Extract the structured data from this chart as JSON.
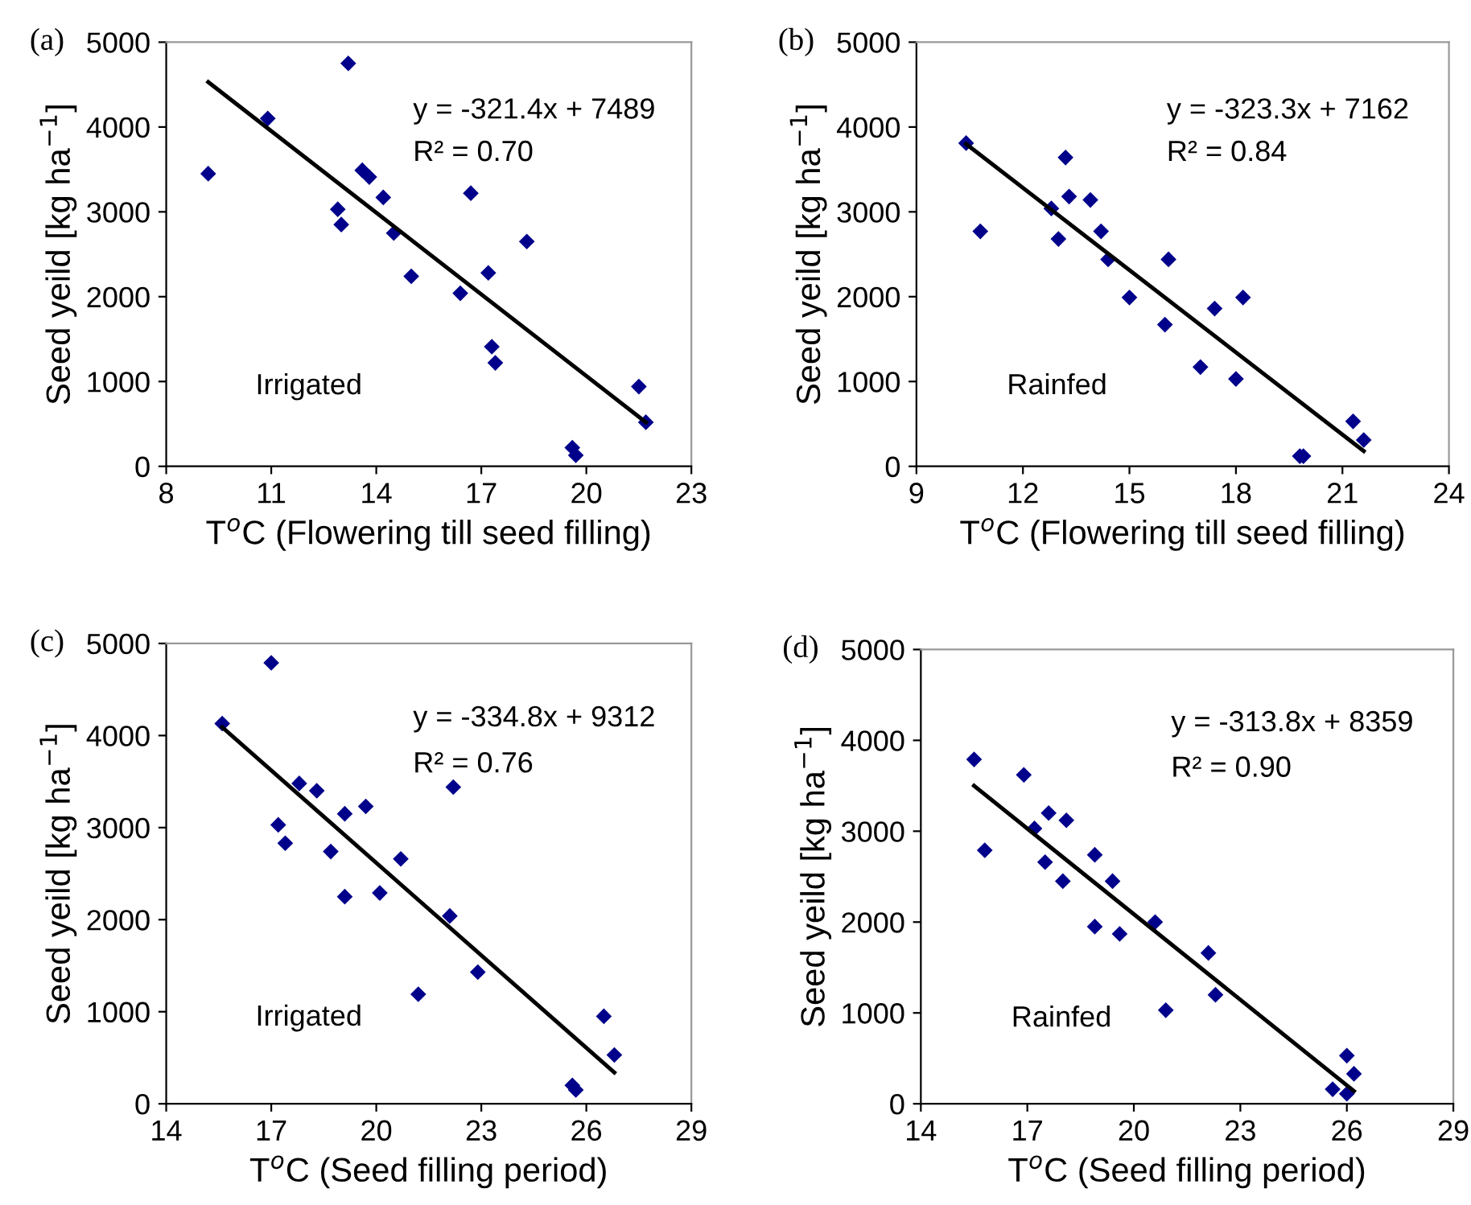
{
  "chart_data": [
    {
      "type": "scatter",
      "title": "(a)",
      "xlabel": "T$^{o}$C (Flowering till seed filling)",
      "ylabel": "Seed yeild [kg ha$^{−1}$]",
      "xlim": [
        8,
        23
      ],
      "xticks": [
        8,
        11,
        14,
        17,
        20,
        23
      ],
      "ylim": [
        0,
        5000
      ],
      "yticks": [
        0,
        1000,
        2000,
        3000,
        4000,
        5000
      ],
      "grid": false,
      "marker": "diamond",
      "annotations": [
        "y = -321.4x + 7489",
        "R² = 0.70",
        "Irrigated"
      ],
      "series": [
        {
          "color": "#00008b",
          "x": [
            9.2,
            10.9,
            13.2,
            12.9,
            13.0,
            13.6,
            13.8,
            14.2,
            14.5,
            15.0,
            16.4,
            16.7,
            17.2,
            17.3,
            17.4,
            18.3,
            19.6,
            19.7,
            21.5,
            21.7
          ],
          "values": [
            3450,
            4100,
            4750,
            3030,
            2850,
            3490,
            3410,
            3170,
            2750,
            2240,
            2040,
            3220,
            2280,
            1410,
            1220,
            2650,
            220,
            130,
            940,
            520
          ]
        },
        {
          "type": "line",
          "color": "#000000",
          "marker": "none",
          "x": [
            9.2,
            21.7
          ],
          "values": [
            4530,
            520
          ]
        }
      ]
    },
    {
      "type": "scatter",
      "title": "(b)",
      "xlabel": "T$^{o}$C (Flowering till seed filling)",
      "ylabel": "Seed yeild [kg ha$^{−1}$]",
      "xlim": [
        9,
        24
      ],
      "xticks": [
        9,
        12,
        15,
        18,
        21,
        24
      ],
      "ylim": [
        0,
        5000
      ],
      "yticks": [
        0,
        1000,
        2000,
        3000,
        4000,
        5000
      ],
      "grid": false,
      "marker": "diamond",
      "annotations": [
        "y = -323.3x + 7162",
        "R² = 0.84",
        "Rainfed"
      ],
      "series": [
        {
          "color": "#00008b",
          "x": [
            10.4,
            10.8,
            12.8,
            13.0,
            13.2,
            13.3,
            13.9,
            14.2,
            14.4,
            15.0,
            16.0,
            16.1,
            17.0,
            17.4,
            18.0,
            18.2,
            19.8,
            19.9,
            21.3,
            21.6
          ],
          "values": [
            3810,
            2770,
            3040,
            2680,
            3640,
            3180,
            3140,
            2770,
            2440,
            1990,
            1670,
            2440,
            1170,
            1860,
            1030,
            1990,
            120,
            120,
            530,
            310
          ]
        },
        {
          "type": "line",
          "color": "#000000",
          "marker": "none",
          "x": [
            10.4,
            21.6
          ],
          "values": [
            3800,
            180
          ]
        }
      ]
    },
    {
      "type": "scatter",
      "title": "(c)",
      "xlabel": "T$^{o}$C (Seed filling period)",
      "ylabel": "Seed yeild [kg ha$^{−1}$]",
      "xlim": [
        14,
        29
      ],
      "xticks": [
        14,
        17,
        20,
        23,
        26,
        29
      ],
      "ylim": [
        0,
        5000
      ],
      "yticks": [
        0,
        1000,
        2000,
        3000,
        4000,
        5000
      ],
      "grid": false,
      "marker": "diamond",
      "annotations": [
        "y = -334.8x + 9312",
        "R² = 0.76",
        "Irrigated"
      ],
      "series": [
        {
          "color": "#00008b",
          "x": [
            15.6,
            17.0,
            17.2,
            17.4,
            17.8,
            18.3,
            18.7,
            19.1,
            19.1,
            19.7,
            20.1,
            20.7,
            21.2,
            22.2,
            22.1,
            22.9,
            25.6,
            25.7,
            26.5,
            26.8
          ],
          "values": [
            4130,
            4790,
            3030,
            2830,
            3480,
            3400,
            2740,
            3150,
            2250,
            3230,
            2290,
            2660,
            1190,
            3440,
            2040,
            1430,
            200,
            150,
            950,
            530
          ]
        },
        {
          "type": "line",
          "color": "#000000",
          "marker": "none",
          "x": [
            15.6,
            26.8
          ],
          "values": [
            4090,
            340
          ]
        }
      ]
    },
    {
      "type": "scatter",
      "title": "(d)",
      "xlabel": "T$^{o}$C (Seed filling period)",
      "ylabel": "Seed yeild [kg ha$^{−1}$]",
      "xlim": [
        14,
        29
      ],
      "xticks": [
        14,
        17,
        20,
        23,
        26,
        29
      ],
      "ylim": [
        0,
        5000
      ],
      "yticks": [
        0,
        1000,
        2000,
        3000,
        4000,
        5000
      ],
      "grid": false,
      "marker": "diamond",
      "annotations": [
        "y = -313.8x + 8359",
        "R² = 0.90",
        "Rainfed"
      ],
      "series": [
        {
          "color": "#00008b",
          "x": [
            15.5,
            15.8,
            16.9,
            17.2,
            17.5,
            17.6,
            18.0,
            18.1,
            18.9,
            18.9,
            19.4,
            19.6,
            20.6,
            20.9,
            22.1,
            22.3,
            25.6,
            26.0,
            26.0,
            26.2
          ],
          "values": [
            3790,
            2790,
            3620,
            3030,
            2660,
            3200,
            2450,
            3120,
            1950,
            2740,
            2450,
            1870,
            2000,
            1030,
            1660,
            1200,
            160,
            530,
            110,
            330
          ]
        },
        {
          "type": "line",
          "color": "#000000",
          "marker": "none",
          "x": [
            15.5,
            26.2
          ],
          "values": [
            3500,
            140
          ]
        }
      ]
    }
  ]
}
